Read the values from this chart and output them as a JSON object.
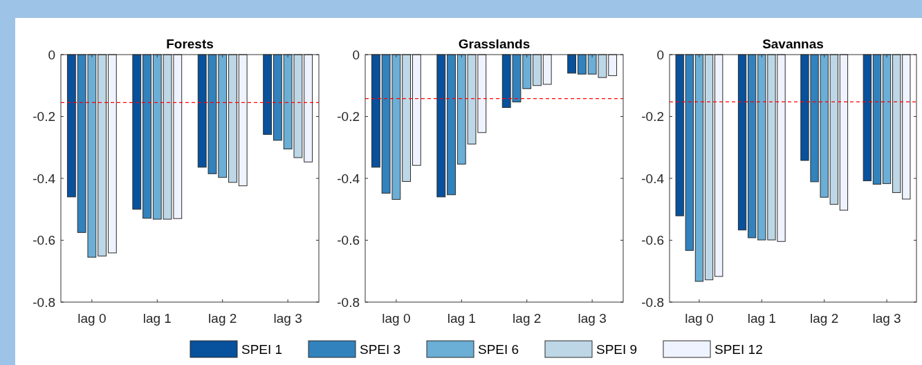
{
  "chart_data": [
    {
      "type": "bar",
      "title": "Forests",
      "categories": [
        "lag 0",
        "lag 1",
        "lag 2",
        "lag 3"
      ],
      "ylim": [
        -0.8,
        0
      ],
      "yticks": [
        0,
        -0.2,
        -0.4,
        -0.6,
        -0.8
      ],
      "grid": false,
      "series": [
        {
          "color": "#08519c",
          "values": [
            -0.46,
            -0.5,
            -0.364,
            -0.258
          ]
        },
        {
          "color": "#3182bd",
          "values": [
            -0.575,
            -0.529,
            -0.385,
            -0.277
          ]
        },
        {
          "color": "#6baed6",
          "values": [
            -0.655,
            -0.532,
            -0.397,
            -0.305
          ]
        },
        {
          "color": "#bdd7e7",
          "values": [
            -0.651,
            -0.532,
            -0.413,
            -0.333
          ]
        },
        {
          "color": "#eff3ff",
          "values": [
            -0.641,
            -0.53,
            -0.424,
            -0.347
          ]
        }
      ],
      "ref_lines": [
        {
          "axis": "y",
          "value": -0.155,
          "color": "#ff0000",
          "line_style": "dashed"
        }
      ]
    },
    {
      "type": "bar",
      "title": "Grasslands",
      "categories": [
        "lag 0",
        "lag 1",
        "lag 2",
        "lag 3"
      ],
      "ylim": [
        -0.8,
        0
      ],
      "yticks": [
        0,
        -0.2,
        -0.4,
        -0.6,
        -0.8
      ],
      "grid": false,
      "legend": "bottom",
      "series": [
        {
          "name": "SPEI 1",
          "color": "#08519c",
          "values": [
            -0.364,
            -0.46,
            -0.171,
            -0.06
          ]
        },
        {
          "name": "SPEI 3",
          "color": "#3182bd",
          "values": [
            -0.448,
            -0.453,
            -0.153,
            -0.063
          ]
        },
        {
          "name": "SPEI 6",
          "color": "#6baed6",
          "values": [
            -0.468,
            -0.354,
            -0.11,
            -0.063
          ]
        },
        {
          "name": "SPEI 9",
          "color": "#bdd7e7",
          "values": [
            -0.41,
            -0.289,
            -0.1,
            -0.074
          ]
        },
        {
          "name": "SPEI 12",
          "color": "#eff3ff",
          "values": [
            -0.358,
            -0.252,
            -0.096,
            -0.068
          ]
        }
      ],
      "ref_lines": [
        {
          "axis": "y",
          "value": -0.142,
          "color": "#ff0000",
          "line_style": "dashed"
        }
      ]
    },
    {
      "type": "bar",
      "title": "Savannas",
      "categories": [
        "lag 0",
        "lag 1",
        "lag 2",
        "lag 3"
      ],
      "ylim": [
        -0.8,
        0
      ],
      "yticks": [
        0,
        -0.2,
        -0.4,
        -0.6,
        -0.8
      ],
      "grid": false,
      "series": [
        {
          "color": "#08519c",
          "values": [
            -0.521,
            -0.567,
            -0.342,
            -0.408
          ]
        },
        {
          "color": "#3182bd",
          "values": [
            -0.633,
            -0.592,
            -0.411,
            -0.419
          ]
        },
        {
          "color": "#6baed6",
          "values": [
            -0.733,
            -0.599,
            -0.461,
            -0.417
          ]
        },
        {
          "color": "#bdd7e7",
          "values": [
            -0.728,
            -0.599,
            -0.484,
            -0.446
          ]
        },
        {
          "color": "#eff3ff",
          "values": [
            -0.717,
            -0.604,
            -0.503,
            -0.467
          ]
        }
      ],
      "ref_lines": [
        {
          "axis": "y",
          "value": -0.153,
          "color": "#ff0000",
          "line_style": "dashed"
        }
      ]
    }
  ]
}
